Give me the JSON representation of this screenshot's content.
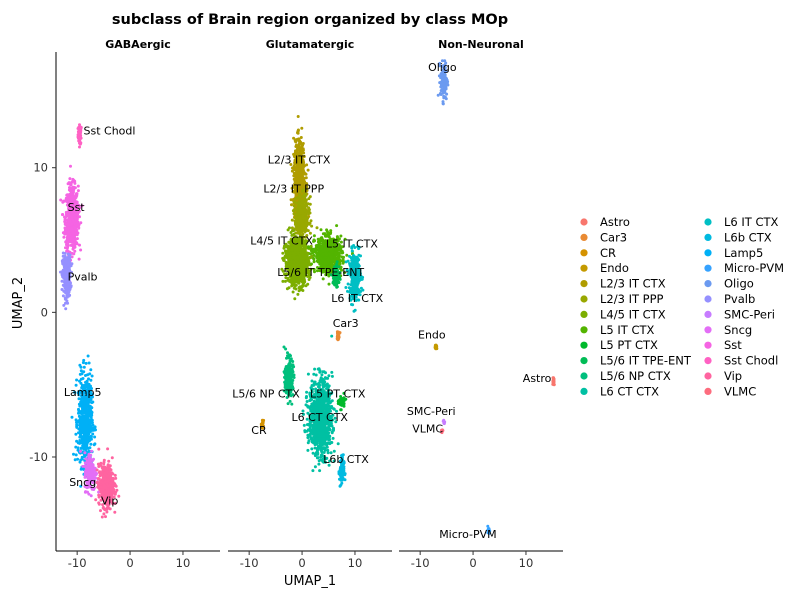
{
  "chart_data": {
    "type": "scatter",
    "title": "subclass of Brain region organized by class MOp",
    "xlabel": "UMAP_1",
    "ylabel": "UMAP_2",
    "xlim": [
      -14,
      17
    ],
    "ylim": [
      -16.5,
      18
    ],
    "x_ticks": [
      -10,
      0,
      10
    ],
    "y_ticks": [
      -10,
      0,
      10
    ],
    "x_tick_labels": [
      "-10",
      "0",
      "10"
    ],
    "y_tick_labels": [
      "-10",
      "0",
      "10"
    ],
    "grid": false,
    "legend_position": "right",
    "legend_columns": 2,
    "facets": [
      "GABAergic",
      "Glutamatergic",
      "Non-Neuronal"
    ],
    "legend": [
      {
        "name": "Astro",
        "color": "#F8766D"
      },
      {
        "name": "Car3",
        "color": "#E98A33"
      },
      {
        "name": "CR",
        "color": "#D49200"
      },
      {
        "name": "Endo",
        "color": "#C49A00"
      },
      {
        "name": "L2/3 IT CTX",
        "color": "#B09C00"
      },
      {
        "name": "L2/3 IT PPP",
        "color": "#99A800"
      },
      {
        "name": "L4/5 IT CTX",
        "color": "#7CAE00"
      },
      {
        "name": "L5 IT CTX",
        "color": "#53B400"
      },
      {
        "name": "L5 PT CTX",
        "color": "#00B92C"
      },
      {
        "name": "L5/6 IT TPE-ENT",
        "color": "#00BC56"
      },
      {
        "name": "L5/6 NP CTX",
        "color": "#00BF7D"
      },
      {
        "name": "L6 CT CTX",
        "color": "#00C0A3"
      },
      {
        "name": "L6 IT CTX",
        "color": "#00BFC4"
      },
      {
        "name": "L6b CTX",
        "color": "#00BAE0"
      },
      {
        "name": "Lamp5",
        "color": "#00B0F6"
      },
      {
        "name": "Micro-PVM",
        "color": "#35A2FF"
      },
      {
        "name": "Oligo",
        "color": "#6B9AF0"
      },
      {
        "name": "Pvalb",
        "color": "#9590FF"
      },
      {
        "name": "SMC-Peri",
        "color": "#C77CFF"
      },
      {
        "name": "Sncg",
        "color": "#E36EF6"
      },
      {
        "name": "Sst",
        "color": "#F564E3"
      },
      {
        "name": "Sst Chodl",
        "color": "#FF61C3"
      },
      {
        "name": "Vip",
        "color": "#FF64A0"
      },
      {
        "name": "VLMC",
        "color": "#FD6C7E"
      }
    ],
    "clusters": [
      {
        "facet": 0,
        "subclass": "Sst Chodl",
        "center": [
          -9.5,
          12.3
        ],
        "spread": [
          0.3,
          0.6
        ],
        "count": 60
      },
      {
        "facet": 0,
        "subclass": "Sst",
        "center": [
          -11,
          6.5
        ],
        "spread": [
          1.1,
          2.0
        ],
        "count": 700
      },
      {
        "facet": 0,
        "subclass": "Pvalb",
        "center": [
          -12,
          2.5
        ],
        "spread": [
          0.7,
          1.3
        ],
        "count": 300
      },
      {
        "facet": 0,
        "subclass": "Lamp5",
        "center": [
          -8.5,
          -7.5
        ],
        "spread": [
          1.2,
          2.8
        ],
        "count": 600
      },
      {
        "facet": 0,
        "subclass": "Sncg",
        "center": [
          -7.5,
          -11.0
        ],
        "spread": [
          1.0,
          1.2
        ],
        "count": 200
      },
      {
        "facet": 0,
        "subclass": "Vip",
        "center": [
          -4.5,
          -12.0
        ],
        "spread": [
          1.3,
          1.3
        ],
        "count": 500
      },
      {
        "facet": 1,
        "subclass": "L2/3 IT CTX",
        "center": [
          -0.5,
          9.0
        ],
        "spread": [
          1.0,
          2.5
        ],
        "count": 700
      },
      {
        "facet": 1,
        "subclass": "L2/3 IT PPP",
        "center": [
          0,
          6.5
        ],
        "spread": [
          1.2,
          1.3
        ],
        "count": 400
      },
      {
        "facet": 1,
        "subclass": "L4/5 IT CTX",
        "center": [
          -1,
          3.5
        ],
        "spread": [
          2.0,
          1.4
        ],
        "count": 900
      },
      {
        "facet": 1,
        "subclass": "L5 IT CTX",
        "center": [
          5,
          4.0
        ],
        "spread": [
          2.3,
          1.1
        ],
        "count": 700
      },
      {
        "facet": 1,
        "subclass": "L5/6 IT TPE-ENT",
        "center": [
          6.5,
          2.5
        ],
        "spread": [
          0.6,
          0.7
        ],
        "count": 100
      },
      {
        "facet": 1,
        "subclass": "L6 IT CTX",
        "center": [
          10,
          2.5
        ],
        "spread": [
          1.0,
          1.5
        ],
        "count": 300
      },
      {
        "facet": 1,
        "subclass": "Car3",
        "center": [
          6.8,
          -1.6
        ],
        "spread": [
          0.2,
          0.3
        ],
        "count": 40
      },
      {
        "facet": 1,
        "subclass": "L5/6 NP CTX",
        "center": [
          -2.5,
          -4.5
        ],
        "spread": [
          0.7,
          1.2
        ],
        "count": 250
      },
      {
        "facet": 1,
        "subclass": "L5 PT CTX",
        "center": [
          7.5,
          -6.2
        ],
        "spread": [
          0.5,
          0.4
        ],
        "count": 60
      },
      {
        "facet": 1,
        "subclass": "L6 CT CTX",
        "center": [
          3.5,
          -7.3
        ],
        "spread": [
          2.0,
          2.4
        ],
        "count": 900
      },
      {
        "facet": 1,
        "subclass": "L6b CTX",
        "center": [
          7.5,
          -11.0
        ],
        "spread": [
          0.4,
          1.0
        ],
        "count": 80
      },
      {
        "facet": 1,
        "subclass": "CR",
        "center": [
          -7.5,
          -7.8
        ],
        "spread": [
          0.2,
          0.3
        ],
        "count": 15
      },
      {
        "facet": 2,
        "subclass": "Oligo",
        "center": [
          -5.5,
          16.0
        ],
        "spread": [
          0.6,
          1.2
        ],
        "count": 120
      },
      {
        "facet": 2,
        "subclass": "Endo",
        "center": [
          -7,
          -2.4
        ],
        "spread": [
          0.2,
          0.2
        ],
        "count": 20
      },
      {
        "facet": 2,
        "subclass": "Astro",
        "center": [
          15.2,
          -4.7
        ],
        "spread": [
          0.2,
          0.3
        ],
        "count": 25
      },
      {
        "facet": 2,
        "subclass": "SMC-Peri",
        "center": [
          -5.5,
          -7.6
        ],
        "spread": [
          0.15,
          0.15
        ],
        "count": 8
      },
      {
        "facet": 2,
        "subclass": "VLMC",
        "center": [
          -5.8,
          -8.2
        ],
        "spread": [
          0.15,
          0.15
        ],
        "count": 6
      },
      {
        "facet": 2,
        "subclass": "Micro-PVM",
        "center": [
          3,
          -15.0
        ],
        "spread": [
          0.2,
          0.2
        ],
        "count": 12
      }
    ],
    "cluster_labels": [
      {
        "facet": 0,
        "text": "Sst Chodl",
        "at": [
          -8.8,
          12.3
        ]
      },
      {
        "facet": 0,
        "text": "Sst",
        "at": [
          -11.8,
          7.0
        ]
      },
      {
        "facet": 0,
        "text": "Pvalb",
        "at": [
          -11.8,
          2.2
        ]
      },
      {
        "facet": 0,
        "text": "Lamp5",
        "at": [
          -12.5,
          -5.8
        ]
      },
      {
        "facet": 0,
        "text": "Sncg",
        "at": [
          -11.5,
          -12.0
        ]
      },
      {
        "facet": 0,
        "text": "Vip",
        "at": [
          -5.5,
          -13.3
        ]
      },
      {
        "facet": 1,
        "text": "L2/3 IT CTX",
        "at": [
          -6.5,
          10.3
        ]
      },
      {
        "facet": 1,
        "text": "L2/3 IT PPP",
        "at": [
          -7.3,
          8.3
        ]
      },
      {
        "facet": 1,
        "text": "L4/5 IT CTX",
        "at": [
          -9.8,
          4.7
        ]
      },
      {
        "facet": 1,
        "text": "L5 IT CTX",
        "at": [
          4.5,
          4.5
        ]
      },
      {
        "facet": 1,
        "text": "L5/6 IT TPE-ENT",
        "at": [
          -4.7,
          2.5
        ]
      },
      {
        "facet": 1,
        "text": "L6 IT CTX",
        "at": [
          5.5,
          0.7
        ]
      },
      {
        "facet": 1,
        "text": "Car3",
        "at": [
          5.8,
          -1.0
        ]
      },
      {
        "facet": 1,
        "text": "L5/6 NP CTX",
        "at": [
          -13.2,
          -5.9
        ]
      },
      {
        "facet": 1,
        "text": "L5 PT CTX",
        "at": [
          1.5,
          -5.9
        ]
      },
      {
        "facet": 1,
        "text": "L6 CT CTX",
        "at": [
          -2.0,
          -7.5
        ]
      },
      {
        "facet": 1,
        "text": "CR",
        "at": [
          -9.6,
          -8.4
        ]
      },
      {
        "facet": 1,
        "text": "L6b CTX",
        "at": [
          4.0,
          -10.4
        ]
      },
      {
        "facet": 2,
        "text": "Oligo",
        "at": [
          -8.5,
          16.7
        ]
      },
      {
        "facet": 2,
        "text": "Endo",
        "at": [
          -10.4,
          -1.8
        ]
      },
      {
        "facet": 2,
        "text": "Astro",
        "at": [
          9.4,
          -4.8
        ]
      },
      {
        "facet": 2,
        "text": "SMC-Peri",
        "at": [
          -12.5,
          -7.1
        ]
      },
      {
        "facet": 2,
        "text": "VLMC",
        "at": [
          -11.5,
          -8.3
        ]
      },
      {
        "facet": 2,
        "text": "Micro-PVM",
        "at": [
          -6.4,
          -15.6
        ]
      }
    ]
  }
}
